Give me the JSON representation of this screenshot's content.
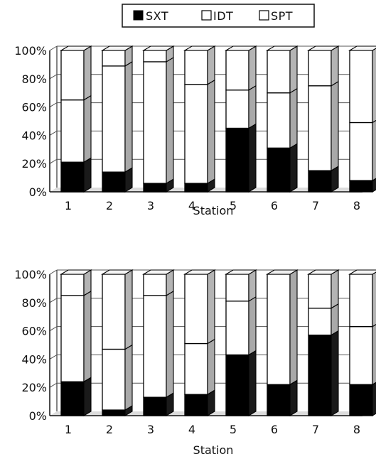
{
  "legend": {
    "items": [
      {
        "label": "SXT",
        "color": "#000000"
      },
      {
        "label": "IDT",
        "color": "#ffffff"
      },
      {
        "label": "SPT",
        "color": "#ffffff"
      }
    ]
  },
  "chart_data": [
    {
      "type": "bar",
      "stacked": true,
      "percent": true,
      "three_d": true,
      "xlabel": "Station",
      "ylabel": "",
      "ylim": [
        0,
        100
      ],
      "yticks": [
        "0%",
        "20%",
        "40%",
        "60%",
        "80%",
        "100%"
      ],
      "categories": [
        "1",
        "2",
        "3",
        "4",
        "5",
        "6",
        "7",
        "8"
      ],
      "series": [
        {
          "name": "SXT",
          "values": [
            21,
            14,
            6,
            6,
            45,
            31,
            15,
            8
          ]
        },
        {
          "name": "IDT",
          "values": [
            44,
            75,
            86,
            70,
            27,
            39,
            60,
            41
          ]
        },
        {
          "name": "SPT",
          "values": [
            35,
            11,
            8,
            24,
            28,
            30,
            25,
            51
          ]
        }
      ],
      "grid": true,
      "legend_position": "top"
    },
    {
      "type": "bar",
      "stacked": true,
      "percent": true,
      "three_d": true,
      "xlabel": "Station",
      "ylabel": "",
      "ylim": [
        0,
        100
      ],
      "yticks": [
        "0%",
        "20%",
        "40%",
        "60%",
        "80%",
        "100%"
      ],
      "categories": [
        "1",
        "2",
        "3",
        "4",
        "5",
        "6",
        "7",
        "8"
      ],
      "series": [
        {
          "name": "SXT",
          "values": [
            24,
            4,
            13,
            15,
            43,
            22,
            57,
            22
          ]
        },
        {
          "name": "IDT",
          "values": [
            61,
            43,
            72,
            36,
            38,
            78,
            19,
            41
          ]
        },
        {
          "name": "SPT",
          "values": [
            15,
            53,
            15,
            49,
            19,
            0,
            24,
            37
          ]
        }
      ],
      "grid": true
    }
  ]
}
